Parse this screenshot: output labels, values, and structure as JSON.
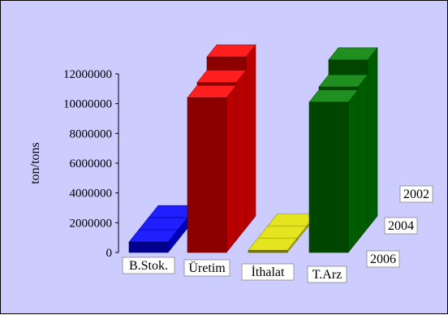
{
  "chart_data": {
    "type": "bar",
    "style": "3d-stepped-columns",
    "ylabel": "ton/tons",
    "ylim": [
      0,
      12000000
    ],
    "yticks": [
      "0",
      "2000000",
      "4000000",
      "6000000",
      "8000000",
      "10000000",
      "12000000"
    ],
    "ytick_values": [
      0,
      2000000,
      4000000,
      6000000,
      8000000,
      10000000,
      12000000
    ],
    "categories": [
      "B.Stok.",
      "Üretim",
      "İthalat",
      "T.Arz"
    ],
    "depth_labels": [
      "2006",
      "2004",
      "2002"
    ],
    "colors": [
      "#0000ff",
      "#ff0000",
      "#e0e000",
      "#008000"
    ],
    "series": [
      {
        "name": "2006",
        "values": [
          700000,
          10400000,
          150000,
          10100000
        ]
      },
      {
        "name": "2004",
        "values": [
          700000,
          10600000,
          150000,
          10300000
        ]
      },
      {
        "name": "2002",
        "values": [
          700000,
          11500000,
          150000,
          11300000
        ]
      }
    ],
    "grid": false,
    "legend": "none"
  }
}
